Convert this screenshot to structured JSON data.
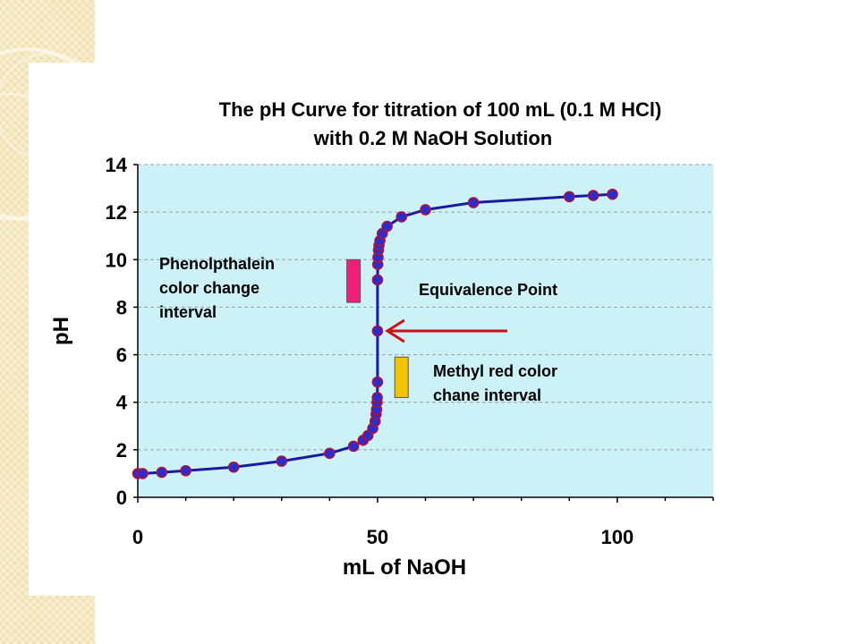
{
  "colors": {
    "plot_background": "#ccf2f8",
    "curve": "#1a1aa0",
    "marker_fill": "#2b2bd0",
    "marker_edge": "#b0123a",
    "grid": "#9aa0a0",
    "arrow": "#cc1111",
    "phenolphthalein_bar": "#f0207a",
    "methyl_red_bar": "#f5c400"
  },
  "chart_data": {
    "type": "scatter",
    "title_line1": "The pH Curve for titration of 100 mL (0.1 M HCl)",
    "title_line2": "with 0.2 M NaOH Solution",
    "xlabel": "mL of NaOH",
    "ylabel": "pH",
    "xlim": [
      0,
      120
    ],
    "ylim": [
      0,
      14
    ],
    "x_ticks": [
      0,
      50,
      100
    ],
    "y_ticks": [
      0,
      2,
      4,
      6,
      8,
      10,
      12,
      14
    ],
    "grid": "horizontal dashed",
    "series": [
      {
        "points": [
          [
            0,
            1.0
          ],
          [
            1,
            1.0
          ],
          [
            5,
            1.05
          ],
          [
            10,
            1.12
          ],
          [
            20,
            1.27
          ],
          [
            30,
            1.52
          ],
          [
            40,
            1.85
          ],
          [
            45,
            2.15
          ],
          [
            47,
            2.4
          ],
          [
            48,
            2.6
          ],
          [
            49,
            2.9
          ],
          [
            49.5,
            3.2
          ],
          [
            49.7,
            3.5
          ],
          [
            49.8,
            3.7
          ],
          [
            49.9,
            4.0
          ],
          [
            49.95,
            4.2
          ],
          [
            50,
            4.85
          ],
          [
            50,
            7.0
          ],
          [
            50,
            9.15
          ],
          [
            50.05,
            9.8
          ],
          [
            50.1,
            10.1
          ],
          [
            50.2,
            10.4
          ],
          [
            50.3,
            10.6
          ],
          [
            50.5,
            10.8
          ],
          [
            51,
            11.1
          ],
          [
            52,
            11.4
          ],
          [
            55,
            11.8
          ],
          [
            60,
            12.1
          ],
          [
            70,
            12.4
          ],
          [
            90,
            12.65
          ],
          [
            95,
            12.7
          ],
          [
            99,
            12.75
          ]
        ]
      }
    ],
    "annotations": {
      "phenolphthalein_lines": [
        "Phenolpthalein",
        "color change",
        "interval"
      ],
      "equivalence": "Equivalence Point",
      "methyl_red_lines": [
        "Methyl red color",
        "chane interval"
      ]
    },
    "indicator_ranges": {
      "phenolphthalein": {
        "x": 45,
        "ph": [
          8.2,
          10.0
        ]
      },
      "methyl_red": {
        "x": 55,
        "ph": [
          4.2,
          5.9
        ]
      }
    },
    "arrow_points_to": {
      "x": 50,
      "ph": 7.0
    }
  }
}
